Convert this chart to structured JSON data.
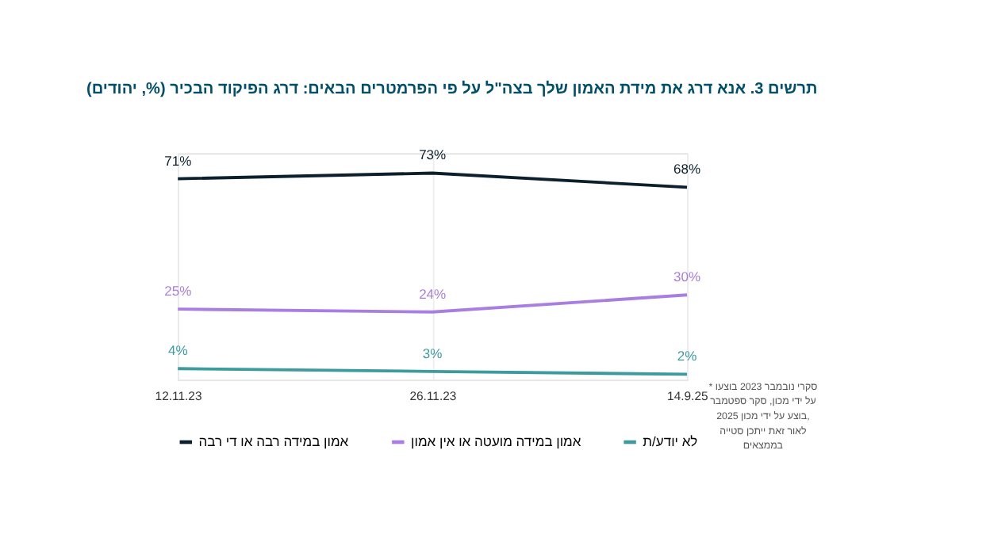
{
  "chart_data": {
    "type": "line",
    "title": "תרשים 3. אנא דרג את מידת האמון שלך בצה\"ל על פי הפרמטרים הבאים: דרג הפיקוד הבכיר (%, יהודים)",
    "categories": [
      "12.11.23",
      "26.11.23",
      "14.9.25"
    ],
    "series": [
      {
        "name": "אמון במידה רבה או די רבה",
        "color": "#0b1f2c",
        "values": [
          71,
          73,
          68
        ],
        "value_labels": [
          "71%",
          "73%",
          "68%"
        ]
      },
      {
        "name": "אמון במידה מועטה או אין אמון",
        "color": "#a87ee3",
        "values": [
          25,
          24,
          30
        ],
        "value_labels": [
          "25%",
          "24%",
          "30%"
        ]
      },
      {
        "name": "לא יודע/ת",
        "color": "#3d9b9e",
        "values": [
          4,
          3,
          2
        ],
        "value_labels": [
          "4%",
          "3%",
          "2%"
        ]
      }
    ],
    "annotations": [
      "* סקרי נובמבר 2023 בוצעו על ידי מכון, סקר ספטמבר 2025 בוצע על ידי מכון, לאור זאת ייתכן סטייה בממצאים"
    ],
    "grid": "x",
    "legend": "bottom",
    "tick_labels": "x",
    "marker": "none",
    "line_style": "solid"
  }
}
